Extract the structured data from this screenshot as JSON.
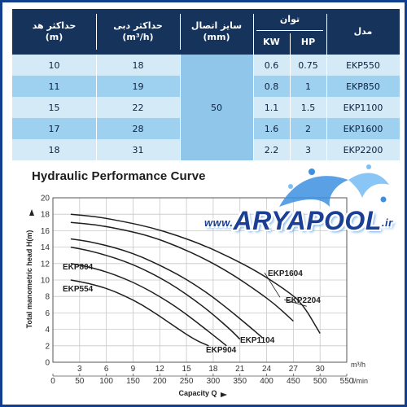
{
  "spec_table": {
    "headers": {
      "head_m": "حداکثر هد\n(m)",
      "flow": "حداکثر دبی\n(m³/h)",
      "connection": "سایز اتصال\n(mm)",
      "power": "توان",
      "kw": "KW",
      "hp": "HP",
      "model": "مدل"
    },
    "rows": [
      {
        "head": "10",
        "flow": "18",
        "kw": "0.6",
        "hp": "0.75",
        "model": "EKP550"
      },
      {
        "head": "11",
        "flow": "19",
        "kw": "0.8",
        "hp": "1",
        "model": "EKP850"
      },
      {
        "head": "15",
        "flow": "22",
        "kw": "1.1",
        "hp": "1.5",
        "model": "EKP1100"
      },
      {
        "head": "17",
        "flow": "28",
        "kw": "1.6",
        "hp": "2",
        "model": "EKP1600"
      },
      {
        "head": "18",
        "flow": "31",
        "kw": "2.2",
        "hp": "3",
        "model": "EKP2200"
      }
    ],
    "connection_value": "50",
    "colors": {
      "header": "#16335c",
      "row_light": "#d4eaf7",
      "row_dark": "#9ed0ef"
    }
  },
  "watermark": {
    "main": "ARYAPOOL",
    "prefix": "www.",
    "suffix": ".ir"
  },
  "chart_data": {
    "type": "line",
    "title": "Hydraulic Performance Curve",
    "ylabel": "Total manometric head H(m)",
    "xlabel": "Capacity Q",
    "x_unit_top": "m³/h",
    "x_unit_bottom": "l/min",
    "ylim": [
      0,
      20
    ],
    "xlim_m3h": [
      0,
      33
    ],
    "y_ticks": [
      "0",
      "2",
      "4",
      "6",
      "8",
      "10",
      "12",
      "14",
      "16",
      "18",
      "20"
    ],
    "x_ticks_m3h": [
      "3",
      "6",
      "9",
      "12",
      "15",
      "18",
      "21",
      "24",
      "27",
      "30"
    ],
    "x_ticks_lmin": [
      "0",
      "50",
      "100",
      "150",
      "200",
      "250",
      "300",
      "350",
      "400",
      "450",
      "500",
      "550"
    ],
    "grid": true,
    "series": [
      {
        "name": "EKP554",
        "x": [
          2,
          4,
          6,
          8,
          10,
          12,
          14,
          16,
          17.5
        ],
        "y": [
          10,
          9.6,
          9,
          8.1,
          7,
          5.6,
          4.1,
          2.7,
          2
        ]
      },
      {
        "name": "EKP804",
        "x": [
          2,
          4,
          6,
          8,
          10,
          12,
          14,
          16,
          18,
          19.5
        ],
        "y": [
          12,
          11.6,
          11,
          10.2,
          9.2,
          8,
          6.6,
          5,
          3.3,
          2
        ]
      },
      {
        "name": "EKP904",
        "x": [
          2,
          4,
          6,
          8,
          10,
          12,
          14,
          16,
          18,
          20,
          21
        ],
        "y": [
          14,
          13.6,
          13,
          12.3,
          11.4,
          10.3,
          9,
          7.5,
          5.8,
          3.9,
          2.8
        ]
      },
      {
        "name": "EKP1104",
        "x": [
          2,
          4,
          6,
          8,
          10,
          12,
          14,
          16,
          18,
          20,
          22,
          23.5
        ],
        "y": [
          15,
          14.7,
          14.2,
          13.6,
          12.8,
          11.8,
          10.7,
          9.4,
          7.9,
          6.2,
          4.4,
          3
        ]
      },
      {
        "name": "EKP1604",
        "x": [
          2,
          5,
          8,
          11,
          14,
          17,
          20,
          23,
          25,
          27
        ],
        "y": [
          17,
          16.7,
          16.1,
          15.3,
          14.1,
          12.6,
          10.8,
          8.6,
          7,
          5
        ]
      },
      {
        "name": "EKP2204",
        "x": [
          2,
          5,
          8,
          11,
          14,
          17,
          20,
          23,
          26,
          28,
          30
        ],
        "y": [
          18,
          17.7,
          17.1,
          16.4,
          15.4,
          14.2,
          12.7,
          11,
          8.9,
          7.2,
          3.5
        ]
      }
    ],
    "line_color": "#1e1e1e"
  }
}
